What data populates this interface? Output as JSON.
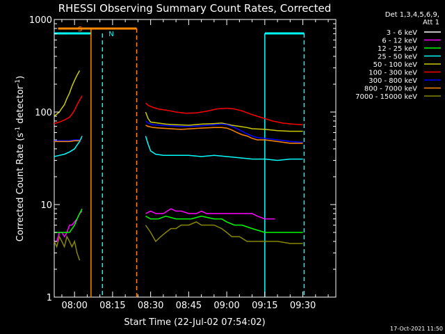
{
  "chart_data": {
    "type": "line",
    "title": "RHESSI Observing Summary Count Rates, Corrected",
    "xlabel": "Start Time (22-Jul-02 07:54:02)",
    "ylabel_main": "Corrected Count Rate (s",
    "ylabel_sup1": "-1",
    "ylabel_mid": " detector",
    "ylabel_sup2": "-1",
    "ylabel_end": ")",
    "yscale": "log",
    "ylim": [
      1,
      1000
    ],
    "y_ticks": [
      {
        "value": 1,
        "label": "1"
      },
      {
        "value": 10,
        "label": "10"
      },
      {
        "value": 100,
        "label": "100"
      },
      {
        "value": 1000,
        "label": "1000"
      }
    ],
    "x_range_min": [
      -8,
      103
    ],
    "x_ticks": [
      {
        "value": 0,
        "label": "08:00"
      },
      {
        "value": 15,
        "label": "08:15"
      },
      {
        "value": 30,
        "label": "08:30"
      },
      {
        "value": 45,
        "label": "08:45"
      },
      {
        "value": 60,
        "label": "09:00"
      },
      {
        "value": 75,
        "label": "09:15"
      },
      {
        "value": 90,
        "label": "09:30"
      }
    ],
    "legend_header": [
      "Det 1,3,4,5,6,9,",
      "Att 1"
    ],
    "legend": [
      {
        "label": "3 - 6 keV",
        "color": "#ffffff"
      },
      {
        "label": "6 - 12 keV",
        "color": "#ff00ff"
      },
      {
        "label": "12 - 25 keV",
        "color": "#00ff00"
      },
      {
        "label": "25 - 50 keV",
        "color": "#00ffff"
      },
      {
        "label": "50 - 100 keV",
        "color": "#cccc00"
      },
      {
        "label": "100 - 300 keV",
        "color": "#ff0000"
      },
      {
        "label": "300 - 800 keV",
        "color": "#0000ff"
      },
      {
        "label": "800 - 7000 keV",
        "color": "#ff8800"
      },
      {
        "label": "7000 - 15000 keV",
        "color": "#888800"
      }
    ],
    "annotations": {
      "saa_label": "S",
      "night_label": "N",
      "saa_color": "#ff8800",
      "night_color": "#00ffff",
      "saa_bar": [
        -6.5,
        24.5
      ],
      "night_bars": [
        [
          -8,
          6.5
        ],
        [
          75,
          90.5
        ]
      ],
      "saa_lines": [
        6.5,
        24.5
      ],
      "night_lines": [
        11,
        90.5,
        75
      ]
    },
    "series": [
      {
        "name": "3 - 6 keV",
        "color": "#ffffff",
        "points": []
      },
      {
        "name": "6 - 12 keV",
        "color": "#ff00ff",
        "points": [
          [
            -8,
            4
          ],
          [
            -7,
            4
          ],
          [
            -6,
            5
          ],
          [
            -5,
            5
          ],
          [
            -4,
            4.5
          ],
          [
            -3,
            5
          ],
          [
            -2,
            6
          ],
          [
            -1,
            6
          ],
          [
            0,
            6.5
          ],
          [
            1,
            7
          ],
          [
            2,
            8
          ],
          [
            3,
            8.5
          ],
          [
            28,
            8
          ],
          [
            30,
            8.5
          ],
          [
            32,
            8
          ],
          [
            35,
            8
          ],
          [
            38,
            9
          ],
          [
            40,
            8.5
          ],
          [
            42,
            8.5
          ],
          [
            45,
            8
          ],
          [
            48,
            8
          ],
          [
            50,
            8.5
          ],
          [
            52,
            8
          ],
          [
            55,
            8
          ],
          [
            58,
            8
          ],
          [
            60,
            8
          ],
          [
            62,
            8
          ],
          [
            65,
            8
          ],
          [
            68,
            8
          ],
          [
            70,
            8
          ],
          [
            72,
            7.5
          ],
          [
            75,
            7
          ],
          [
            78,
            7
          ],
          [
            79,
            7
          ]
        ]
      },
      {
        "name": "12 - 25 keV",
        "color": "#00ff00",
        "points": [
          [
            -8,
            5
          ],
          [
            -6,
            5
          ],
          [
            -4,
            5
          ],
          [
            -2,
            5
          ],
          [
            0,
            6
          ],
          [
            1,
            7
          ],
          [
            2,
            8
          ],
          [
            3,
            9
          ],
          [
            28,
            7.5
          ],
          [
            30,
            7
          ],
          [
            33,
            7
          ],
          [
            36,
            7.5
          ],
          [
            40,
            7
          ],
          [
            43,
            7
          ],
          [
            46,
            7
          ],
          [
            50,
            7.5
          ],
          [
            55,
            7
          ],
          [
            58,
            7
          ],
          [
            60,
            6.5
          ],
          [
            63,
            6
          ],
          [
            66,
            6
          ],
          [
            70,
            5.5
          ],
          [
            75,
            5
          ],
          [
            80,
            5
          ],
          [
            85,
            5
          ],
          [
            90,
            5
          ]
        ]
      },
      {
        "name": "25 - 50 keV",
        "color": "#00ffff",
        "points": [
          [
            -8,
            33
          ],
          [
            -6,
            34
          ],
          [
            -4,
            35
          ],
          [
            -2,
            37
          ],
          [
            0,
            40
          ],
          [
            1,
            44
          ],
          [
            2,
            48
          ],
          [
            3,
            55
          ],
          [
            28,
            55
          ],
          [
            29,
            45
          ],
          [
            30,
            38
          ],
          [
            32,
            35
          ],
          [
            35,
            34
          ],
          [
            40,
            34
          ],
          [
            45,
            34
          ],
          [
            50,
            33
          ],
          [
            55,
            34
          ],
          [
            60,
            33
          ],
          [
            65,
            32
          ],
          [
            70,
            31
          ],
          [
            75,
            31
          ],
          [
            80,
            30
          ],
          [
            85,
            31
          ],
          [
            90,
            31
          ]
        ]
      },
      {
        "name": "50 - 100 keV",
        "color": "#cccc00",
        "points": [
          [
            -8,
            90
          ],
          [
            -7,
            95
          ],
          [
            -6,
            100
          ],
          [
            -5,
            110
          ],
          [
            -4,
            120
          ],
          [
            -3,
            140
          ],
          [
            -2,
            160
          ],
          [
            -1,
            190
          ],
          [
            0,
            220
          ],
          [
            1,
            250
          ],
          [
            2,
            280
          ],
          [
            28,
            100
          ],
          [
            29,
            85
          ],
          [
            30,
            78
          ],
          [
            33,
            76
          ],
          [
            36,
            74
          ],
          [
            40,
            73
          ],
          [
            45,
            72
          ],
          [
            50,
            74
          ],
          [
            55,
            75
          ],
          [
            58,
            76
          ],
          [
            60,
            74
          ],
          [
            62,
            72
          ],
          [
            65,
            70
          ],
          [
            68,
            68
          ],
          [
            70,
            66
          ],
          [
            75,
            65
          ],
          [
            80,
            63
          ],
          [
            85,
            62
          ],
          [
            90,
            62
          ]
        ]
      },
      {
        "name": "100 - 300 keV",
        "color": "#ff0000",
        "points": [
          [
            -8,
            75
          ],
          [
            -6,
            78
          ],
          [
            -4,
            82
          ],
          [
            -2,
            88
          ],
          [
            -1,
            95
          ],
          [
            0,
            105
          ],
          [
            1,
            120
          ],
          [
            2,
            135
          ],
          [
            3,
            150
          ],
          [
            28,
            125
          ],
          [
            29,
            118
          ],
          [
            31,
            112
          ],
          [
            33,
            108
          ],
          [
            36,
            105
          ],
          [
            40,
            100
          ],
          [
            44,
            97
          ],
          [
            48,
            98
          ],
          [
            52,
            102
          ],
          [
            56,
            108
          ],
          [
            60,
            110
          ],
          [
            63,
            108
          ],
          [
            66,
            103
          ],
          [
            69,
            96
          ],
          [
            72,
            90
          ],
          [
            75,
            85
          ],
          [
            78,
            80
          ],
          [
            82,
            76
          ],
          [
            86,
            74
          ],
          [
            90,
            73
          ]
        ]
      },
      {
        "name": "300 - 800 keV",
        "color": "#0000ff",
        "points": [
          [
            -8,
            49
          ],
          [
            -6,
            49
          ],
          [
            -4,
            49
          ],
          [
            -2,
            49
          ],
          [
            0,
            50
          ],
          [
            2,
            50
          ],
          [
            28,
            80
          ],
          [
            29,
            76
          ],
          [
            31,
            73
          ],
          [
            34,
            72
          ],
          [
            38,
            71
          ],
          [
            42,
            70
          ],
          [
            46,
            70
          ],
          [
            50,
            71
          ],
          [
            55,
            73
          ],
          [
            58,
            74
          ],
          [
            60,
            73
          ],
          [
            62,
            70
          ],
          [
            64,
            66
          ],
          [
            66,
            62
          ],
          [
            68,
            58
          ],
          [
            70,
            55
          ],
          [
            72,
            53
          ],
          [
            75,
            52
          ],
          [
            80,
            50
          ],
          [
            85,
            48
          ],
          [
            90,
            47
          ]
        ]
      },
      {
        "name": "800 - 7000 keV",
        "color": "#ff8800",
        "points": [
          [
            -8,
            48
          ],
          [
            -6,
            48
          ],
          [
            -4,
            48
          ],
          [
            -2,
            48
          ],
          [
            0,
            49
          ],
          [
            2,
            49
          ],
          [
            28,
            72
          ],
          [
            29,
            70
          ],
          [
            31,
            68
          ],
          [
            34,
            67
          ],
          [
            38,
            66
          ],
          [
            42,
            65
          ],
          [
            46,
            66
          ],
          [
            50,
            67
          ],
          [
            55,
            68
          ],
          [
            58,
            68
          ],
          [
            60,
            67
          ],
          [
            62,
            64
          ],
          [
            64,
            60
          ],
          [
            66,
            57
          ],
          [
            68,
            55
          ],
          [
            70,
            52
          ],
          [
            72,
            50
          ],
          [
            75,
            50
          ],
          [
            80,
            48
          ],
          [
            85,
            46
          ],
          [
            90,
            46
          ]
        ]
      },
      {
        "name": "7000 - 15000 keV",
        "color": "#888800",
        "points": [
          [
            -8,
            4
          ],
          [
            -7,
            3.5
          ],
          [
            -6,
            4.5
          ],
          [
            -5,
            4
          ],
          [
            -4,
            3.5
          ],
          [
            -3,
            4.5
          ],
          [
            -2,
            4
          ],
          [
            -1,
            3.5
          ],
          [
            0,
            4
          ],
          [
            1,
            3
          ],
          [
            2,
            2.5
          ],
          [
            28,
            6
          ],
          [
            30,
            5
          ],
          [
            32,
            4
          ],
          [
            34,
            4.5
          ],
          [
            36,
            5
          ],
          [
            38,
            5.5
          ],
          [
            40,
            5.5
          ],
          [
            42,
            6
          ],
          [
            45,
            6
          ],
          [
            48,
            6.5
          ],
          [
            50,
            6
          ],
          [
            55,
            6
          ],
          [
            58,
            5.5
          ],
          [
            60,
            5
          ],
          [
            62,
            4.5
          ],
          [
            65,
            4.5
          ],
          [
            68,
            4
          ],
          [
            70,
            4
          ],
          [
            75,
            4
          ],
          [
            80,
            4
          ],
          [
            85,
            3.8
          ],
          [
            90,
            3.8
          ]
        ]
      }
    ]
  },
  "footer": {
    "date_stamp": "17-Oct-2021 11:50"
  }
}
